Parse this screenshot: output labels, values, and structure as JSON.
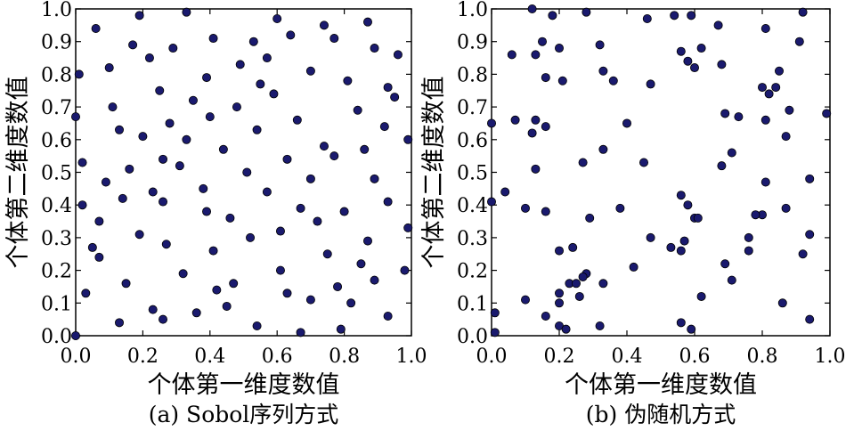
{
  "chart_data": [
    {
      "type": "scatter",
      "caption": "(a) Sobol序列方式",
      "xlabel": "个体第一维度数值",
      "ylabel": "个体第二维度数值",
      "xlim": [
        0,
        1
      ],
      "ylim": [
        0,
        1
      ],
      "xticks": [
        "0.0",
        "0.2",
        "0.4",
        "0.6",
        "0.8",
        "1.0"
      ],
      "yticks": [
        "0.0",
        "0.1",
        "0.2",
        "0.3",
        "0.4",
        "0.5",
        "0.6",
        "0.7",
        "0.8",
        "0.9",
        "1.0"
      ],
      "grid": false,
      "marker_color": "#1a1a6e",
      "points": [
        [
          0.0,
          0.0
        ],
        [
          0.19,
          0.98
        ],
        [
          0.33,
          0.99
        ],
        [
          0.6,
          0.97
        ],
        [
          0.74,
          0.95
        ],
        [
          0.87,
          0.96
        ],
        [
          0.06,
          0.94
        ],
        [
          0.17,
          0.89
        ],
        [
          0.29,
          0.88
        ],
        [
          0.41,
          0.91
        ],
        [
          0.53,
          0.9
        ],
        [
          0.64,
          0.92
        ],
        [
          0.77,
          0.91
        ],
        [
          0.89,
          0.88
        ],
        [
          0.96,
          0.86
        ],
        [
          0.22,
          0.85
        ],
        [
          0.49,
          0.83
        ],
        [
          0.57,
          0.85
        ],
        [
          0.01,
          0.8
        ],
        [
          0.1,
          0.82
        ],
        [
          0.39,
          0.79
        ],
        [
          0.7,
          0.81
        ],
        [
          0.81,
          0.78
        ],
        [
          0.55,
          0.77
        ],
        [
          0.59,
          0.74
        ],
        [
          0.93,
          0.76
        ],
        [
          0.25,
          0.75
        ],
        [
          0.95,
          0.73
        ],
        [
          0.11,
          0.7
        ],
        [
          0.35,
          0.72
        ],
        [
          0.48,
          0.7
        ],
        [
          0.84,
          0.69
        ],
        [
          0.0,
          0.67
        ],
        [
          0.4,
          0.67
        ],
        [
          0.28,
          0.65
        ],
        [
          0.66,
          0.66
        ],
        [
          0.13,
          0.63
        ],
        [
          0.54,
          0.63
        ],
        [
          0.92,
          0.64
        ],
        [
          0.2,
          0.61
        ],
        [
          0.33,
          0.6
        ],
        [
          0.99,
          0.6
        ],
        [
          0.44,
          0.57
        ],
        [
          0.74,
          0.58
        ],
        [
          0.86,
          0.57
        ],
        [
          0.02,
          0.53
        ],
        [
          0.26,
          0.54
        ],
        [
          0.63,
          0.54
        ],
        [
          0.77,
          0.55
        ],
        [
          0.16,
          0.51
        ],
        [
          0.31,
          0.52
        ],
        [
          0.51,
          0.5
        ],
        [
          0.09,
          0.47
        ],
        [
          0.7,
          0.48
        ],
        [
          0.89,
          0.48
        ],
        [
          0.38,
          0.45
        ],
        [
          0.23,
          0.44
        ],
        [
          0.57,
          0.44
        ],
        [
          0.26,
          0.41
        ],
        [
          0.93,
          0.41
        ],
        [
          0.02,
          0.4
        ],
        [
          0.14,
          0.42
        ],
        [
          0.39,
          0.38
        ],
        [
          0.67,
          0.39
        ],
        [
          0.8,
          0.38
        ],
        [
          0.46,
          0.36
        ],
        [
          0.07,
          0.35
        ],
        [
          0.72,
          0.35
        ],
        [
          0.61,
          0.32
        ],
        [
          0.99,
          0.33
        ],
        [
          0.19,
          0.31
        ],
        [
          0.52,
          0.3
        ],
        [
          0.87,
          0.29
        ],
        [
          0.27,
          0.28
        ],
        [
          0.05,
          0.27
        ],
        [
          0.41,
          0.26
        ],
        [
          0.75,
          0.25
        ],
        [
          0.07,
          0.24
        ],
        [
          0.85,
          0.22
        ],
        [
          0.61,
          0.2
        ],
        [
          0.98,
          0.2
        ],
        [
          0.32,
          0.19
        ],
        [
          0.89,
          0.17
        ],
        [
          0.15,
          0.16
        ],
        [
          0.47,
          0.16
        ],
        [
          0.78,
          0.15
        ],
        [
          0.42,
          0.14
        ],
        [
          0.63,
          0.13
        ],
        [
          0.03,
          0.13
        ],
        [
          0.7,
          0.11
        ],
        [
          0.82,
          0.1
        ],
        [
          0.45,
          0.09
        ],
        [
          0.23,
          0.08
        ],
        [
          0.36,
          0.07
        ],
        [
          0.93,
          0.06
        ],
        [
          0.26,
          0.05
        ],
        [
          0.13,
          0.04
        ],
        [
          0.54,
          0.03
        ],
        [
          0.79,
          0.02
        ],
        [
          0.67,
          0.01
        ]
      ]
    },
    {
      "type": "scatter",
      "caption": "(b) 伪随机方式",
      "xlabel": "个体第一维度数值",
      "ylabel": "个体第二维度数值",
      "xlim": [
        0,
        1
      ],
      "ylim": [
        0,
        1
      ],
      "xticks": [
        "0.0",
        "0.2",
        "0.4",
        "0.6",
        "0.8",
        "1.0"
      ],
      "yticks": [
        "0.0",
        "0.1",
        "0.2",
        "0.3",
        "0.4",
        "0.5",
        "0.6",
        "0.7",
        "0.8",
        "0.9",
        "1.0"
      ],
      "grid": false,
      "marker_color": "#1a1a6e",
      "points": [
        [
          0.12,
          1.0
        ],
        [
          0.18,
          0.98
        ],
        [
          0.28,
          0.99
        ],
        [
          0.46,
          0.97
        ],
        [
          0.54,
          0.98
        ],
        [
          0.59,
          0.98
        ],
        [
          0.67,
          0.95
        ],
        [
          0.92,
          0.99
        ],
        [
          0.15,
          0.9
        ],
        [
          0.2,
          0.88
        ],
        [
          0.32,
          0.89
        ],
        [
          0.56,
          0.87
        ],
        [
          0.62,
          0.88
        ],
        [
          0.81,
          0.94
        ],
        [
          0.91,
          0.9
        ],
        [
          0.06,
          0.86
        ],
        [
          0.13,
          0.86
        ],
        [
          0.58,
          0.84
        ],
        [
          0.6,
          0.82
        ],
        [
          0.68,
          0.83
        ],
        [
          0.85,
          0.81
        ],
        [
          0.16,
          0.79
        ],
        [
          0.21,
          0.78
        ],
        [
          0.33,
          0.81
        ],
        [
          0.36,
          0.78
        ],
        [
          0.47,
          0.77
        ],
        [
          0.8,
          0.76
        ],
        [
          0.84,
          0.76
        ],
        [
          0.82,
          0.74
        ],
        [
          0.88,
          0.69
        ],
        [
          0.99,
          0.68
        ],
        [
          0.69,
          0.68
        ],
        [
          0.73,
          0.67
        ],
        [
          0.81,
          0.66
        ],
        [
          0.0,
          0.65
        ],
        [
          0.07,
          0.66
        ],
        [
          0.13,
          0.66
        ],
        [
          0.4,
          0.65
        ],
        [
          0.16,
          0.64
        ],
        [
          0.12,
          0.62
        ],
        [
          0.87,
          0.61
        ],
        [
          0.71,
          0.56
        ],
        [
          0.33,
          0.57
        ],
        [
          0.45,
          0.53
        ],
        [
          0.68,
          0.52
        ],
        [
          0.13,
          0.51
        ],
        [
          0.27,
          0.53
        ],
        [
          0.94,
          0.48
        ],
        [
          0.81,
          0.47
        ],
        [
          0.04,
          0.44
        ],
        [
          0.0,
          0.41
        ],
        [
          0.56,
          0.43
        ],
        [
          0.58,
          0.4
        ],
        [
          0.1,
          0.39
        ],
        [
          0.16,
          0.38
        ],
        [
          0.38,
          0.39
        ],
        [
          0.87,
          0.39
        ],
        [
          0.6,
          0.36
        ],
        [
          0.61,
          0.36
        ],
        [
          0.8,
          0.37
        ],
        [
          0.29,
          0.36
        ],
        [
          0.78,
          0.37
        ],
        [
          0.94,
          0.31
        ],
        [
          0.47,
          0.3
        ],
        [
          0.57,
          0.29
        ],
        [
          0.76,
          0.3
        ],
        [
          0.24,
          0.27
        ],
        [
          0.2,
          0.26
        ],
        [
          0.53,
          0.27
        ],
        [
          0.56,
          0.26
        ],
        [
          0.76,
          0.26
        ],
        [
          0.92,
          0.25
        ],
        [
          0.69,
          0.22
        ],
        [
          0.42,
          0.21
        ],
        [
          0.28,
          0.19
        ],
        [
          0.27,
          0.18
        ],
        [
          0.23,
          0.16
        ],
        [
          0.25,
          0.16
        ],
        [
          0.33,
          0.16
        ],
        [
          0.71,
          0.17
        ],
        [
          0.2,
          0.13
        ],
        [
          0.26,
          0.12
        ],
        [
          0.62,
          0.12
        ],
        [
          0.1,
          0.11
        ],
        [
          0.2,
          0.1
        ],
        [
          0.86,
          0.1
        ],
        [
          0.16,
          0.06
        ],
        [
          0.56,
          0.04
        ],
        [
          0.94,
          0.05
        ],
        [
          0.01,
          0.07
        ],
        [
          0.2,
          0.03
        ],
        [
          0.32,
          0.03
        ],
        [
          0.22,
          0.02
        ],
        [
          0.59,
          0.02
        ],
        [
          0.01,
          0.01
        ]
      ]
    }
  ]
}
